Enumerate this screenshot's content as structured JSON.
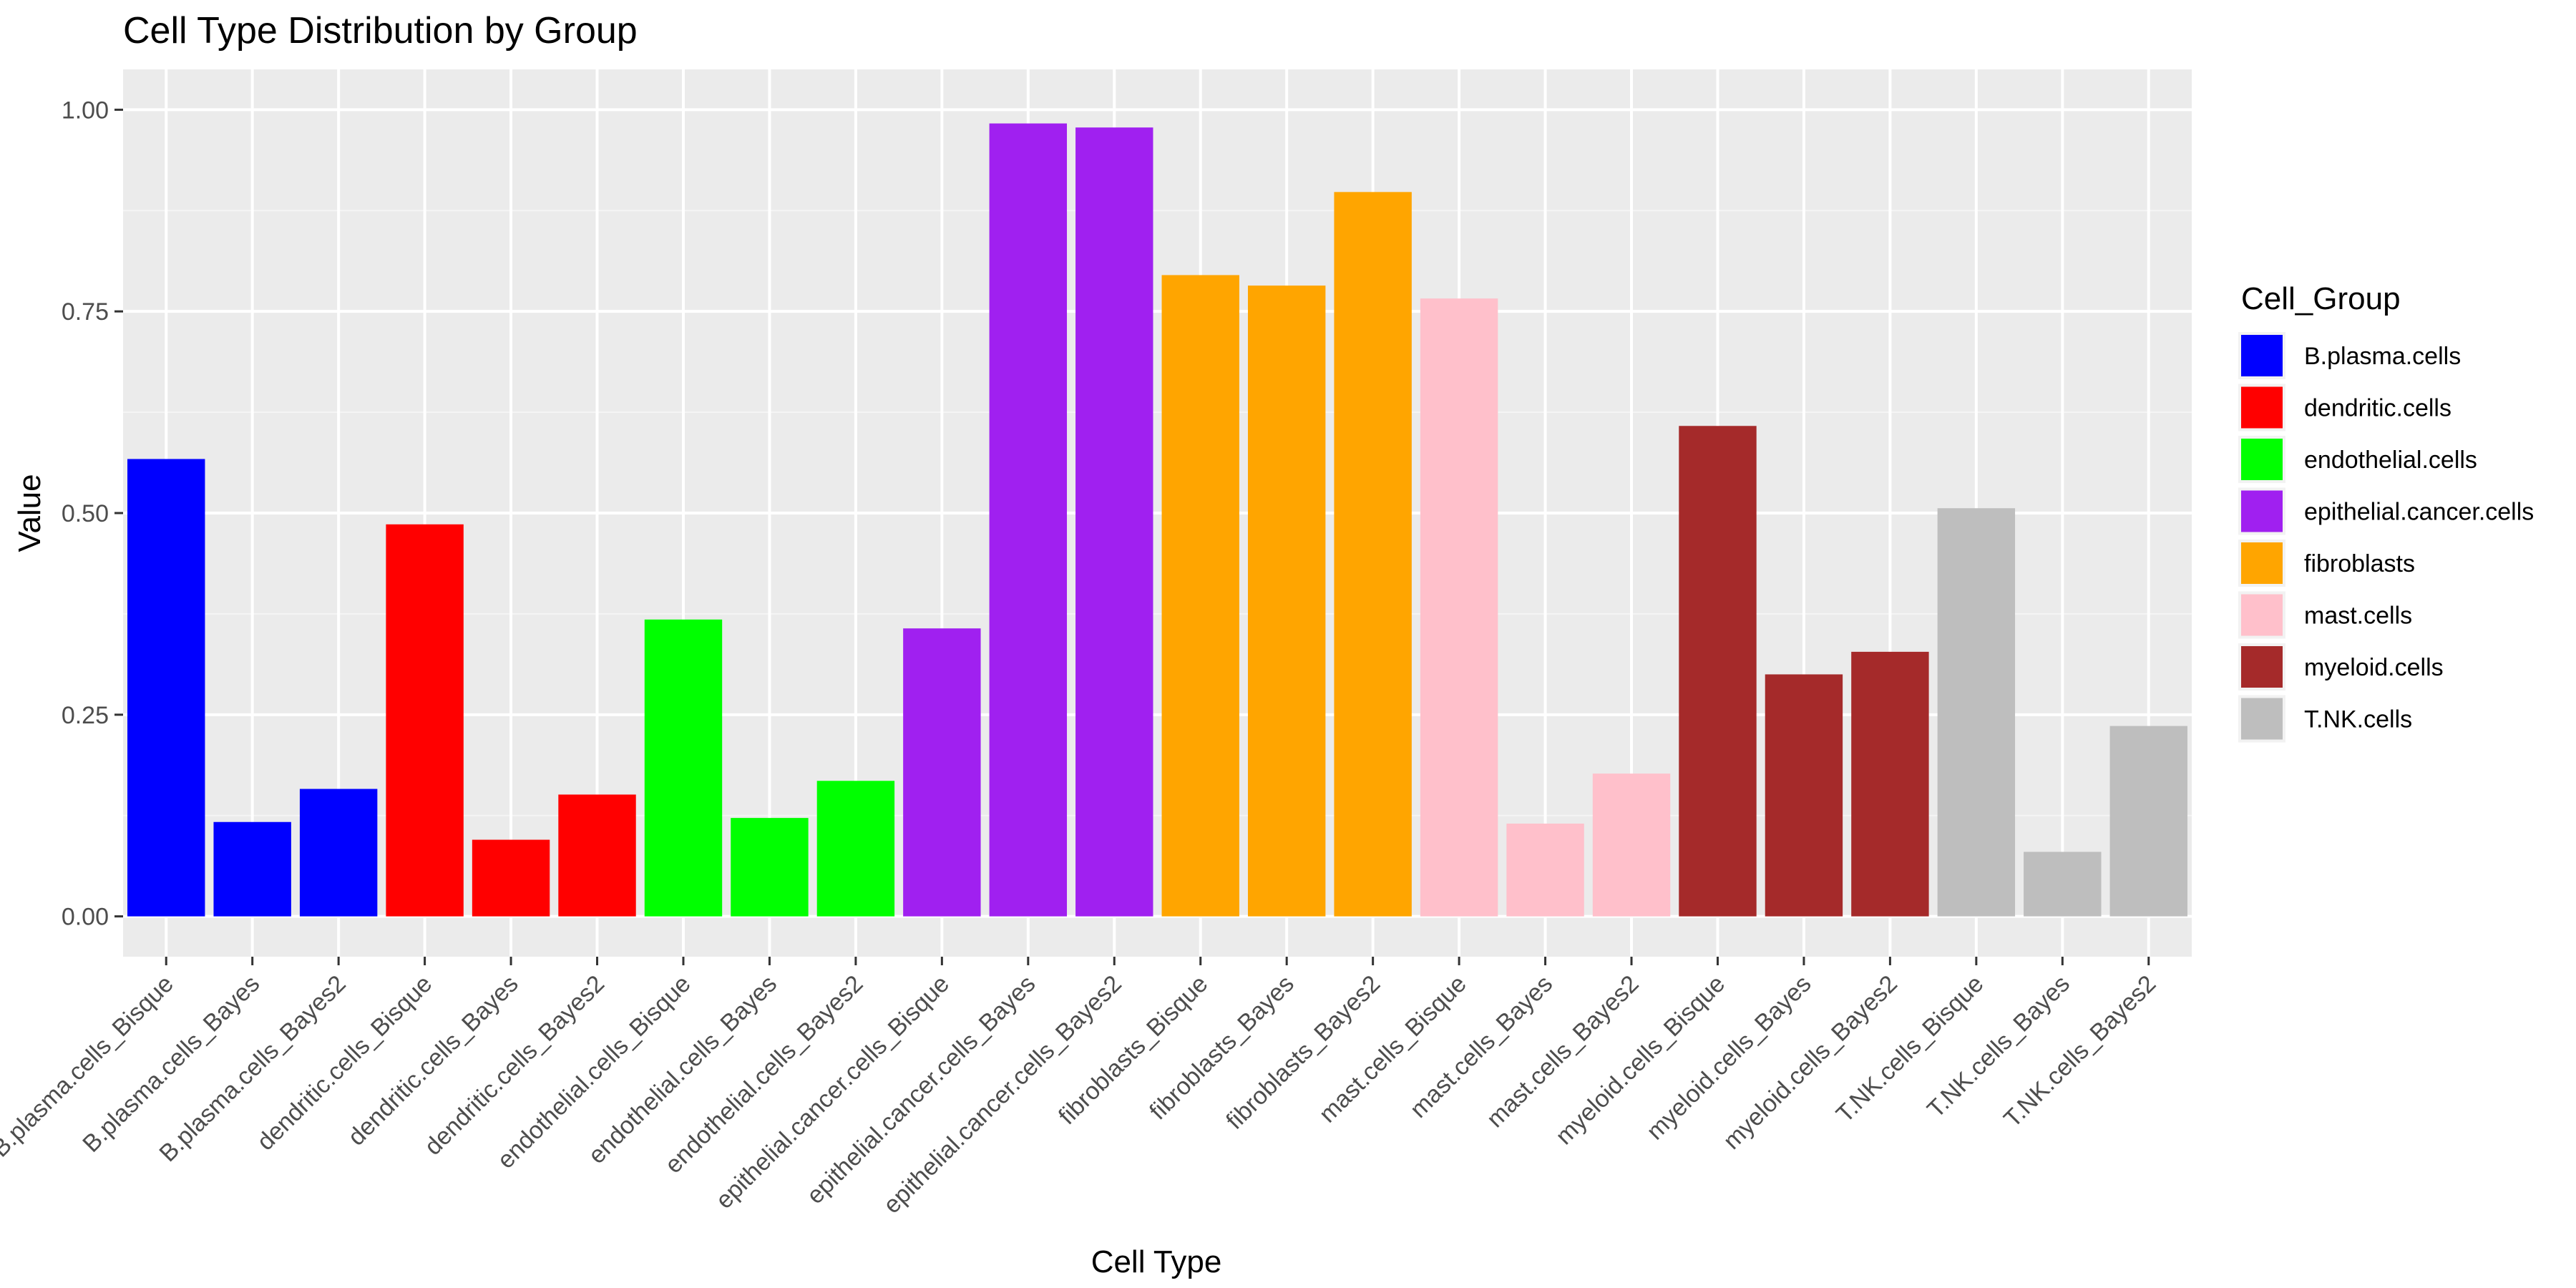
{
  "chart_data": {
    "type": "bar",
    "title": "Cell Type Distribution by Group",
    "xlabel": "Cell Type",
    "ylabel": "Value",
    "ylim": [
      -0.05,
      1.05
    ],
    "yticks": [
      0.0,
      0.25,
      0.5,
      0.75,
      1.0
    ],
    "ytick_labels": [
      "0.00",
      "0.25",
      "0.50",
      "0.75",
      "1.00"
    ],
    "grid": true,
    "legend": {
      "title": "Cell_Group",
      "placement": "right",
      "entries": [
        {
          "name": "B.plasma.cells",
          "color": "#0000FF"
        },
        {
          "name": "dendritic.cells",
          "color": "#FF0000"
        },
        {
          "name": "endothelial.cells",
          "color": "#00FF00"
        },
        {
          "name": "epithelial.cancer.cells",
          "color": "#A020F0"
        },
        {
          "name": "fibroblasts",
          "color": "#FFA500"
        },
        {
          "name": "mast.cells",
          "color": "#FFC0CB"
        },
        {
          "name": "myeloid.cells",
          "color": "#A52A2A"
        },
        {
          "name": "T.NK.cells",
          "color": "#BEBEBE"
        }
      ]
    },
    "categories": [
      "B.plasma.cells_Bisque",
      "B.plasma.cells_Bayes",
      "B.plasma.cells_Bayes2",
      "dendritic.cells_Bisque",
      "dendritic.cells_Bayes",
      "dendritic.cells_Bayes2",
      "endothelial.cells_Bisque",
      "endothelial.cells_Bayes",
      "endothelial.cells_Bayes2",
      "epithelial.cancer.cells_Bisque",
      "epithelial.cancer.cells_Bayes",
      "epithelial.cancer.cells_Bayes2",
      "fibroblasts_Bisque",
      "fibroblasts_Bayes",
      "fibroblasts_Bayes2",
      "mast.cells_Bisque",
      "mast.cells_Bayes",
      "mast.cells_Bayes2",
      "myeloid.cells_Bisque",
      "myeloid.cells_Bayes",
      "myeloid.cells_Bayes2",
      "T.NK.cells_Bisque",
      "T.NK.cells_Bayes",
      "T.NK.cells_Bayes2"
    ],
    "values": [
      0.567,
      0.117,
      0.158,
      0.486,
      0.095,
      0.151,
      0.368,
      0.122,
      0.168,
      0.357,
      0.983,
      0.978,
      0.795,
      0.782,
      0.898,
      0.766,
      0.115,
      0.177,
      0.608,
      0.3,
      0.328,
      0.506,
      0.08,
      0.236
    ],
    "groups": [
      "B.plasma.cells",
      "B.plasma.cells",
      "B.plasma.cells",
      "dendritic.cells",
      "dendritic.cells",
      "dendritic.cells",
      "endothelial.cells",
      "endothelial.cells",
      "endothelial.cells",
      "epithelial.cancer.cells",
      "epithelial.cancer.cells",
      "epithelial.cancer.cells",
      "fibroblasts",
      "fibroblasts",
      "fibroblasts",
      "mast.cells",
      "mast.cells",
      "mast.cells",
      "myeloid.cells",
      "myeloid.cells",
      "myeloid.cells",
      "T.NK.cells",
      "T.NK.cells",
      "T.NK.cells"
    ],
    "colors": {
      "panel_background": "#EBEBEB",
      "grid_major": "#FFFFFF",
      "grid_minor": "#F5F5F5"
    }
  }
}
